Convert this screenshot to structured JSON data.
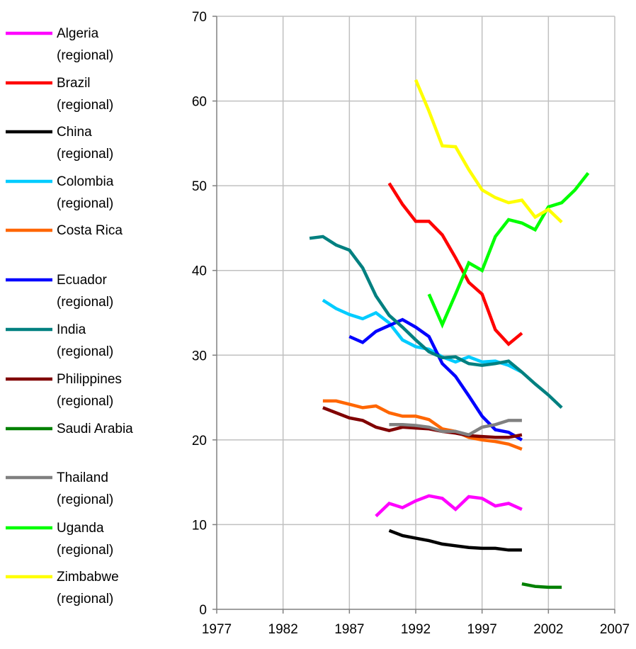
{
  "chart_data": {
    "type": "line",
    "title": "",
    "xlabel": "",
    "ylabel": "",
    "xlim": [
      1977,
      2007
    ],
    "ylim": [
      0,
      70
    ],
    "x_ticks": [
      1977,
      1982,
      1987,
      1992,
      1997,
      2002,
      2007
    ],
    "y_ticks": [
      0,
      10,
      20,
      30,
      40,
      50,
      60,
      70
    ],
    "grid": true,
    "legend_placement": "left",
    "series": [
      {
        "name": "Algeria (regional)",
        "label_lines": [
          "Algeria",
          "(regional)"
        ],
        "color": "#FF00FF",
        "x": [
          1989,
          1990,
          1991,
          1992,
          1993,
          1994,
          1995,
          1996,
          1997,
          1998,
          1999,
          2000
        ],
        "y": [
          11.0,
          12.5,
          12.0,
          12.8,
          13.4,
          13.1,
          11.8,
          13.3,
          13.1,
          12.2,
          12.5,
          11.8
        ]
      },
      {
        "name": "Brazil (regional)",
        "label_lines": [
          "Brazil",
          "(regional)"
        ],
        "color": "#FF0000",
        "x": [
          1990,
          1991,
          1992,
          1993,
          1994,
          1995,
          1996,
          1997,
          1998,
          1999,
          2000
        ],
        "y": [
          50.3,
          47.8,
          45.8,
          45.8,
          44.2,
          41.5,
          38.6,
          37.2,
          33.0,
          31.3,
          32.6
        ]
      },
      {
        "name": "China (regional)",
        "label_lines": [
          "China",
          "(regional)"
        ],
        "color": "#000000",
        "x": [
          1990,
          1991,
          1992,
          1993,
          1994,
          1995,
          1996,
          1997,
          1998,
          1999,
          2000
        ],
        "y": [
          9.3,
          8.7,
          8.4,
          8.1,
          7.7,
          7.5,
          7.3,
          7.2,
          7.2,
          7.0,
          7.0
        ]
      },
      {
        "name": "Colombia (regional)",
        "label_lines": [
          "Colombia",
          "(regional)"
        ],
        "color": "#00CCFF",
        "x": [
          1985,
          1986,
          1987,
          1988,
          1989,
          1990,
          1991,
          1992,
          1993,
          1994,
          1995,
          1996,
          1997,
          1998,
          1999,
          2000
        ],
        "y": [
          36.5,
          35.5,
          34.8,
          34.3,
          35.0,
          33.8,
          31.8,
          31.0,
          30.7,
          29.8,
          29.2,
          29.8,
          29.2,
          29.3,
          28.8,
          28.0
        ]
      },
      {
        "name": "Costa Rica",
        "label_lines": [
          "Costa Rica"
        ],
        "color": "#FF6600",
        "x": [
          1985,
          1986,
          1987,
          1988,
          1989,
          1990,
          1991,
          1992,
          1993,
          1994,
          1995,
          1996,
          1997,
          1998,
          1999,
          2000
        ],
        "y": [
          24.6,
          24.6,
          24.2,
          23.8,
          24.0,
          23.2,
          22.8,
          22.8,
          22.4,
          21.3,
          21.0,
          20.3,
          20.0,
          19.8,
          19.5,
          18.9
        ]
      },
      {
        "name": "Ecuador (regional)",
        "label_lines": [
          "Ecuador",
          "(regional)"
        ],
        "color": "#0000FF",
        "x": [
          1987,
          1988,
          1989,
          1990,
          1991,
          1992,
          1993,
          1994,
          1995,
          1996,
          1997,
          1998,
          1999,
          2000
        ],
        "y": [
          32.2,
          31.5,
          32.8,
          33.5,
          34.2,
          33.3,
          32.2,
          29.0,
          27.5,
          25.2,
          22.8,
          21.2,
          20.9,
          20.0
        ]
      },
      {
        "name": "India (regional)",
        "label_lines": [
          "India",
          "(regional)"
        ],
        "color": "#008080",
        "x": [
          1984,
          1985,
          1986,
          1987,
          1988,
          1989,
          1990,
          1991,
          1992,
          1993,
          1994,
          1995,
          1996,
          1997,
          1998,
          1999,
          2000,
          2001,
          2002,
          2003
        ],
        "y": [
          43.8,
          44.0,
          43.0,
          42.4,
          40.3,
          37.0,
          34.7,
          33.3,
          31.8,
          30.4,
          29.7,
          29.8,
          29.0,
          28.8,
          29.0,
          29.3,
          28.0,
          26.6,
          25.3,
          23.8
        ]
      },
      {
        "name": "Philippines (regional)",
        "label_lines": [
          "Philippines",
          "(regional)"
        ],
        "color": "#800000",
        "x": [
          1985,
          1986,
          1987,
          1988,
          1989,
          1990,
          1991,
          1992,
          1993,
          1994,
          1995,
          1996,
          1997,
          1998,
          1999,
          2000
        ],
        "y": [
          23.8,
          23.2,
          22.6,
          22.3,
          21.5,
          21.1,
          21.5,
          21.4,
          21.3,
          21.0,
          20.8,
          20.5,
          20.4,
          20.3,
          20.3,
          20.6
        ]
      },
      {
        "name": "Saudi Arabia",
        "label_lines": [
          "Saudi Arabia"
        ],
        "color": "#008000",
        "x": [
          2000,
          2001,
          2002,
          2003
        ],
        "y": [
          3.0,
          2.7,
          2.6,
          2.6
        ]
      },
      {
        "name": "Thailand (regional)",
        "label_lines": [
          "Thailand",
          "(regional)"
        ],
        "color": "#808080",
        "x": [
          1990,
          1991,
          1992,
          1993,
          1994,
          1995,
          1996,
          1997,
          1998,
          1999,
          2000
        ],
        "y": [
          21.8,
          21.8,
          21.7,
          21.5,
          21.0,
          21.0,
          20.6,
          21.5,
          21.8,
          22.3,
          22.3
        ]
      },
      {
        "name": "Uganda (regional)",
        "label_lines": [
          "Uganda",
          "(regional)"
        ],
        "color": "#00FF00",
        "x": [
          1993,
          1994,
          1995,
          1996,
          1997,
          1998,
          1999,
          2000,
          2001,
          2002,
          2003,
          2004,
          2005
        ],
        "y": [
          37.2,
          33.6,
          37.2,
          40.9,
          40.0,
          44.0,
          46.0,
          45.6,
          44.8,
          47.5,
          48.0,
          49.5,
          51.5
        ]
      },
      {
        "name": "Zimbabwe (regional)",
        "label_lines": [
          "Zimbabwe",
          "(regional)"
        ],
        "color": "#FFFF00",
        "x": [
          1992,
          1993,
          1994,
          1995,
          1996,
          1997,
          1998,
          1999,
          2000,
          2001,
          2002,
          2003
        ],
        "y": [
          62.5,
          58.8,
          54.7,
          54.6,
          51.9,
          49.5,
          48.6,
          48.0,
          48.3,
          46.3,
          47.2,
          45.7
        ]
      }
    ]
  }
}
